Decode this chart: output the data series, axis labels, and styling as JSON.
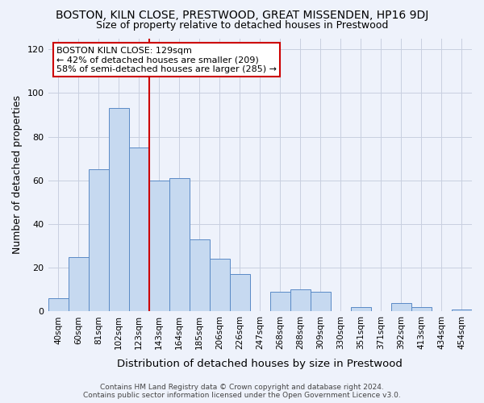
{
  "title": "BOSTON, KILN CLOSE, PRESTWOOD, GREAT MISSENDEN, HP16 9DJ",
  "subtitle": "Size of property relative to detached houses in Prestwood",
  "xlabel": "Distribution of detached houses by size in Prestwood",
  "ylabel": "Number of detached properties",
  "bar_labels": [
    "40sqm",
    "60sqm",
    "81sqm",
    "102sqm",
    "123sqm",
    "143sqm",
    "164sqm",
    "185sqm",
    "206sqm",
    "226sqm",
    "247sqm",
    "268sqm",
    "288sqm",
    "309sqm",
    "330sqm",
    "351sqm",
    "371sqm",
    "392sqm",
    "413sqm",
    "434sqm",
    "454sqm"
  ],
  "bar_values": [
    6,
    25,
    65,
    93,
    75,
    60,
    61,
    33,
    24,
    17,
    0,
    9,
    10,
    9,
    0,
    2,
    0,
    4,
    2,
    0,
    1
  ],
  "bar_color": "#c6d9f0",
  "bar_edge_color": "#5a8ac6",
  "vline_color": "#cc0000",
  "annotation_title": "BOSTON KILN CLOSE: 129sqm",
  "annotation_line1": "← 42% of detached houses are smaller (209)",
  "annotation_line2": "58% of semi-detached houses are larger (285) →",
  "annotation_box_color": "#ffffff",
  "annotation_box_edge_color": "#cc0000",
  "ylim": [
    0,
    125
  ],
  "yticks": [
    0,
    20,
    40,
    60,
    80,
    100,
    120
  ],
  "footer_line1": "Contains HM Land Registry data © Crown copyright and database right 2024.",
  "footer_line2": "Contains public sector information licensed under the Open Government Licence v3.0.",
  "background_color": "#eef2fb",
  "plot_bg_color": "#eef2fb",
  "grid_color": "#c8cfe0",
  "title_fontsize": 10,
  "subtitle_fontsize": 9,
  "axis_label_fontsize": 9
}
